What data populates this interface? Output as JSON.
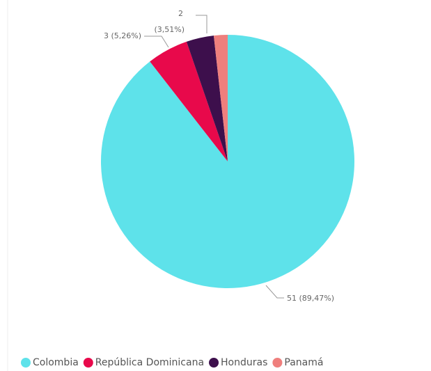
{
  "chart_data": {
    "type": "pie",
    "categories": [
      "Colombia",
      "República Dominicana",
      "Honduras",
      "Panamá"
    ],
    "values": [
      51,
      3,
      2,
      1
    ],
    "value_labels": [
      "51 (89,47%)",
      "3 (5,26%)",
      "2 (3,51%)",
      null
    ],
    "colors": [
      "#5ee2ea",
      "#e8094b",
      "#3d0f4c",
      "#ef7f7d"
    ],
    "legend": "bottom"
  }
}
